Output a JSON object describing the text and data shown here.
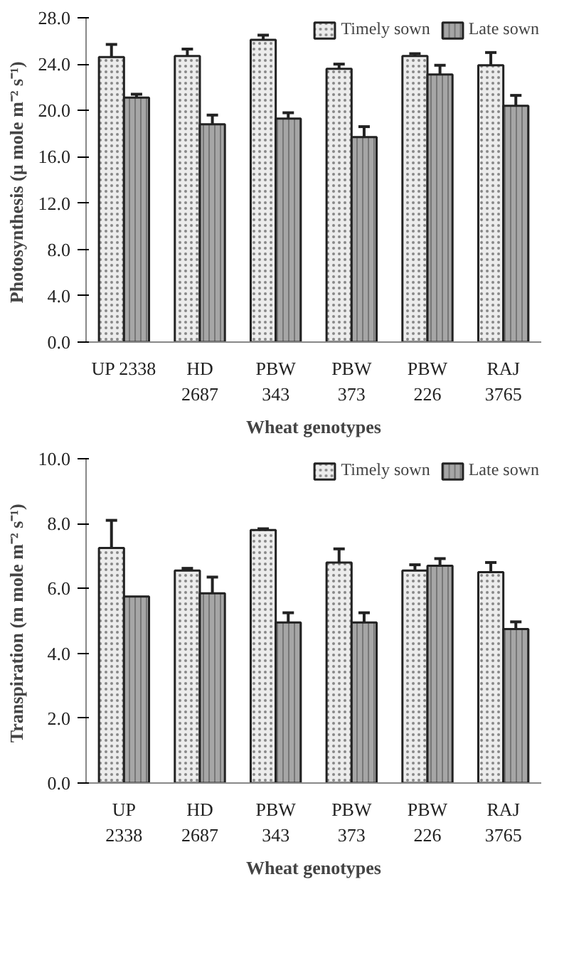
{
  "chart_data": [
    {
      "type": "bar",
      "xlabel": "Wheat genotypes",
      "ylabel": "Photosynthesis  (µ mole m⁻² s⁻¹)",
      "categories": [
        "UP 2338",
        "HD\n2687",
        "PBW\n343",
        "PBW\n373",
        "PBW\n226",
        "RAJ\n3765"
      ],
      "series": [
        {
          "name": "Timely sown",
          "color": "#ececec",
          "values": [
            24.6,
            24.7,
            26.1,
            23.6,
            24.7,
            23.9
          ],
          "errors": [
            1.1,
            0.6,
            0.4,
            0.4,
            0.2,
            1.1
          ]
        },
        {
          "name": "Late sown",
          "color": "#a6a6a6",
          "values": [
            21.1,
            18.8,
            19.3,
            17.7,
            23.1,
            20.4
          ],
          "errors": [
            0.3,
            0.8,
            0.5,
            0.9,
            0.8,
            0.9
          ]
        }
      ],
      "ylim": [
        0,
        28
      ],
      "yticks": [
        {
          "value": 0,
          "label": "0.0"
        },
        {
          "value": 4,
          "label": "4.0"
        },
        {
          "value": 8,
          "label": "8.0"
        },
        {
          "value": 12,
          "label": "12.0"
        },
        {
          "value": 16,
          "label": "16.0"
        },
        {
          "value": 20,
          "label": "20.0"
        },
        {
          "value": 24,
          "label": "24.0"
        },
        {
          "value": 28,
          "label": "28.0"
        }
      ],
      "grid": false,
      "legend": "top right"
    },
    {
      "type": "bar",
      "xlabel": "Wheat genotypes",
      "ylabel": "Transpiration  (m mole m⁻² s⁻¹)",
      "categories": [
        "UP\n2338",
        "HD\n2687",
        "PBW\n343",
        "PBW\n373",
        "PBW\n226",
        "RAJ\n3765"
      ],
      "series": [
        {
          "name": "Timely sown",
          "color": "#ececec",
          "values": [
            7.25,
            6.55,
            7.8,
            6.8,
            6.55,
            6.5
          ],
          "errors": [
            0.85,
            0.07,
            0.04,
            0.42,
            0.18,
            0.3
          ]
        },
        {
          "name": "Late sown",
          "color": "#a6a6a6",
          "values": [
            5.75,
            5.85,
            4.95,
            4.95,
            6.7,
            4.75
          ],
          "errors": [
            null,
            0.5,
            0.3,
            0.3,
            0.22,
            0.22
          ]
        }
      ],
      "ylim": [
        0,
        10
      ],
      "yticks": [
        {
          "value": 0,
          "label": "0.0"
        },
        {
          "value": 2,
          "label": "2.0"
        },
        {
          "value": 4,
          "label": "4.0"
        },
        {
          "value": 6,
          "label": "6.0"
        },
        {
          "value": 8,
          "label": "8.0"
        },
        {
          "value": 10,
          "label": "10.0"
        }
      ],
      "grid": false,
      "legend": "top right"
    }
  ]
}
